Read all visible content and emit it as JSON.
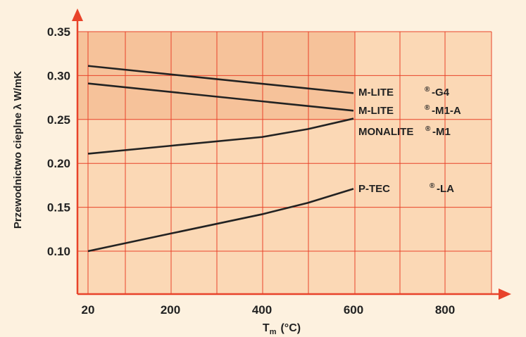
{
  "chart_data": {
    "type": "line",
    "xlabel": "T",
    "xlabel_sub": "m",
    "xlabel_unit": "(°C)",
    "ylabel": "Przewodnictwo cieplne λ W/mK",
    "xlim": [
      20,
      900
    ],
    "ylim": [
      0.07,
      0.35
    ],
    "x_ticks": [
      20,
      200,
      400,
      600,
      800
    ],
    "y_ticks": [
      0.1,
      0.15,
      0.2,
      0.25,
      0.3,
      0.35
    ],
    "y_tick_labels": [
      "0.10",
      "0.15",
      "0.20",
      "0.25",
      "0.30",
      "0.35"
    ],
    "grid": true,
    "series": [
      {
        "name": "M-LITE ®-G4",
        "label_parts": [
          "M-LITE",
          "®",
          "-G4"
        ],
        "x": [
          20,
          600
        ],
        "values": [
          0.311,
          0.28
        ]
      },
      {
        "name": "M-LITE ®-M1-A",
        "label_parts": [
          "M-LITE",
          "®",
          "-M1-A"
        ],
        "x": [
          20,
          600
        ],
        "values": [
          0.291,
          0.26
        ]
      },
      {
        "name": "MONALITE®-M1",
        "label_parts": [
          "MONALITE",
          "®",
          "-M1"
        ],
        "x": [
          20,
          200,
          400,
          500,
          600
        ],
        "values": [
          0.211,
          0.22,
          0.23,
          0.239,
          0.251
        ]
      },
      {
        "name": "P-TEC ®-LA",
        "label_parts": [
          "P-TEC",
          "®",
          "-LA"
        ],
        "x": [
          20,
          200,
          400,
          500,
          600
        ],
        "values": [
          0.1,
          0.12,
          0.142,
          0.155,
          0.171
        ]
      }
    ],
    "colors": {
      "background": "#fdf1df",
      "plot_area": "#fbd8b5",
      "highlight": "#f6c29a",
      "grid": "#e8432a",
      "axes": "#e8432a",
      "lines": "#222222",
      "text": "#222222"
    }
  }
}
